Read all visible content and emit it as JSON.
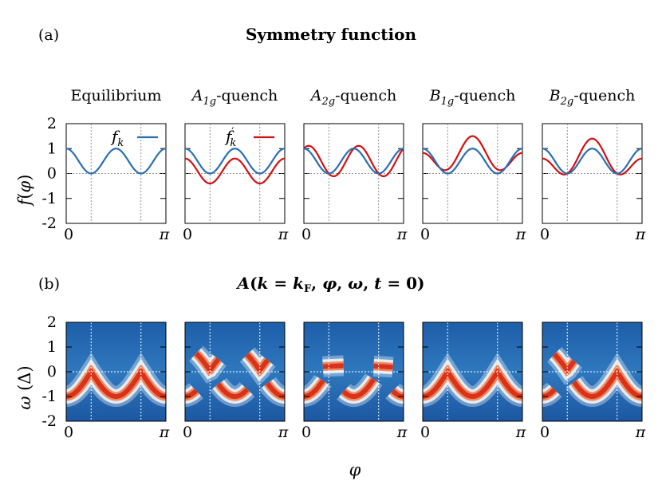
{
  "figure": {
    "panel_a_label": "(a)",
    "panel_b_label": "(b)",
    "title_a": "Symmetry function",
    "title_b": "A(k = kF, φ, ω, t = 0)",
    "xlabel": "φ"
  },
  "columns": [
    {
      "title": "Equilibrium",
      "quench": "none"
    },
    {
      "title": "A1g-quench",
      "quench": "A1g"
    },
    {
      "title": "A2g-quench",
      "quench": "A2g"
    },
    {
      "title": "B1g-quench",
      "quench": "B1g"
    },
    {
      "title": "B2g-quench",
      "quench": "B2g"
    }
  ],
  "chart_data": [
    {
      "type": "line",
      "panel": "a",
      "ylabel": "f(φ)",
      "xlim": [
        0,
        3.1416
      ],
      "ylim": [
        -2,
        2
      ],
      "x_ticks": [
        "0",
        "π"
      ],
      "y_ticks": [
        "-2",
        "-1",
        "0",
        "1",
        "2"
      ],
      "legend": [
        {
          "name": "f_k",
          "color": "#2b6fb0"
        },
        {
          "name": "f'_k",
          "color": "#d11111"
        }
      ],
      "series": [
        {
          "name": "f_k",
          "color": "#2b6fb0",
          "x": [
            0,
            0.3927,
            0.7854,
            1.1781,
            1.5708,
            1.9635,
            2.3562,
            2.7489,
            3.1416
          ],
          "values": [
            1.0,
            0.5,
            0.0,
            0.5,
            1.0,
            0.5,
            0.0,
            0.5,
            1.0
          ]
        },
        {
          "name": "f'_k A1g",
          "color": "#d11111",
          "x": [
            0,
            0.7854,
            1.5708,
            2.3562,
            3.1416
          ],
          "values": [
            0.6,
            -0.4,
            0.6,
            -0.4,
            0.6
          ]
        },
        {
          "name": "f'_k A2g",
          "color": "#d11111",
          "x": [
            0,
            0.785,
            1.18,
            1.57,
            2.36,
            2.75,
            3.1416
          ],
          "values": [
            1.0,
            -0.1,
            1.1,
            0.0,
            -0.1,
            1.1,
            1.0
          ]
        },
        {
          "name": "f'_k B1g",
          "color": "#d11111",
          "x": [
            0,
            0.7854,
            1.5708,
            2.3562,
            3.1416
          ],
          "values": [
            0.6,
            -0.03,
            1.4,
            -0.03,
            0.6
          ]
        },
        {
          "name": "f'_k B2g",
          "color": "#d11111",
          "x": [
            0,
            0.7854,
            1.5708,
            2.3562,
            3.1416
          ],
          "values": [
            1.0,
            -0.4,
            1.0,
            0.4,
            1.0
          ]
        }
      ]
    },
    {
      "type": "heatmap",
      "panel": "b",
      "ylabel": "ω (Δ)",
      "xlim": [
        0,
        3.1416
      ],
      "ylim": [
        -2,
        2
      ],
      "x_ticks": [
        "0",
        "π"
      ],
      "y_ticks": [
        "-2",
        "-1",
        "0",
        "1",
        "2"
      ],
      "colormap": [
        "#1c5aa8",
        "#ffffff",
        "#d9321c"
      ],
      "description_values": {
        "band_min_omega": -1.0,
        "band_max_omega": 0.0
      }
    }
  ]
}
